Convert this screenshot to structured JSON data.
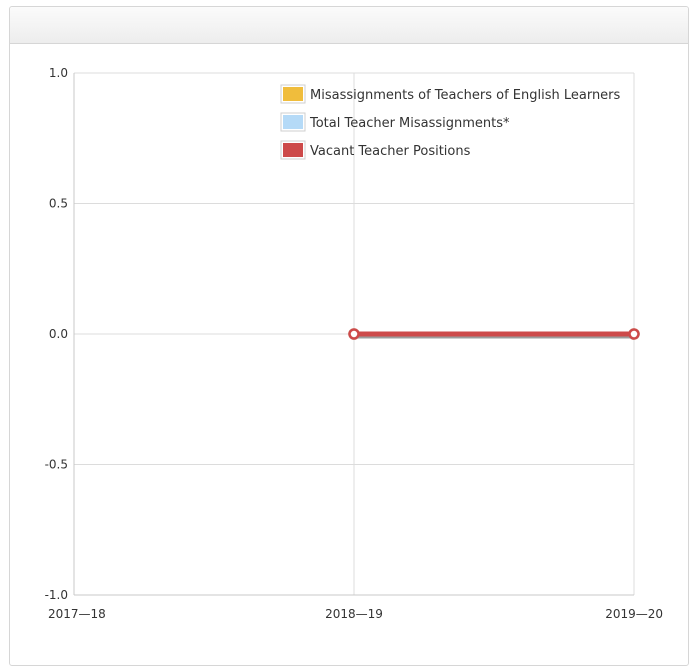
{
  "panel": {
    "title": ""
  },
  "chart_data": {
    "type": "line",
    "title": "",
    "xlabel": "",
    "ylabel": "",
    "categories": [
      "2017—18",
      "2018—19",
      "2019—20"
    ],
    "ylim": [
      -1.0,
      1.0
    ],
    "y_ticks": [
      1.0,
      0.5,
      0.0,
      -0.5,
      -1.0
    ],
    "y_tick_labels": [
      "1.0",
      "0.5",
      "0.0",
      "-0.5",
      "-1.0"
    ],
    "grid": true,
    "legend_position": "top-right",
    "series": [
      {
        "name": "Misassignments of Teachers of English Learners",
        "color": "#f0bd3c",
        "values": [
          null,
          0,
          0
        ]
      },
      {
        "name": "Total Teacher Misassignments*",
        "color": "#b5daf7",
        "values": [
          null,
          0,
          0
        ]
      },
      {
        "name": "Vacant Teacher Positions",
        "color": "#cd4a4a",
        "values": [
          null,
          0,
          0
        ]
      }
    ]
  }
}
